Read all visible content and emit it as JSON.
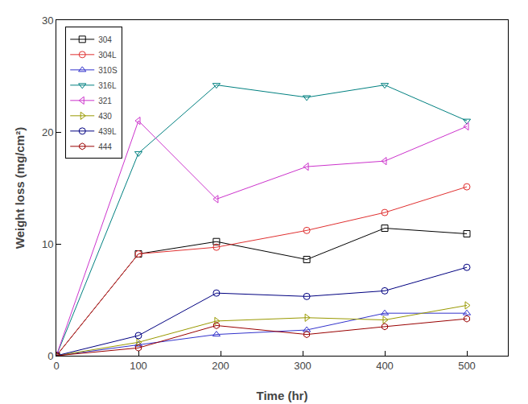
{
  "chart_data": {
    "type": "line",
    "x_label": "Time (hr)",
    "y_label": "Weight loss (mg/cm²)",
    "x": [
      0,
      100,
      195,
      305,
      400,
      500
    ],
    "series": [
      {
        "name": "304",
        "color": "#000000",
        "marker": "square",
        "values": [
          0,
          9.1,
          10.2,
          8.6,
          11.4,
          10.9
        ]
      },
      {
        "name": "304L",
        "color": "#e03030",
        "marker": "circle",
        "values": [
          0,
          9.1,
          9.7,
          11.2,
          12.8,
          15.1
        ]
      },
      {
        "name": "310S",
        "color": "#3333cc",
        "marker": "triangle-up",
        "values": [
          0,
          1.0,
          1.9,
          2.3,
          3.8,
          3.8
        ]
      },
      {
        "name": "316L",
        "color": "#008080",
        "marker": "triangle-down",
        "values": [
          0,
          18.1,
          24.2,
          23.1,
          24.2,
          21.0
        ]
      },
      {
        "name": "321",
        "color": "#cc33cc",
        "marker": "triangle-left",
        "values": [
          0,
          21.0,
          14.0,
          16.9,
          17.4,
          20.5
        ]
      },
      {
        "name": "430",
        "color": "#999900",
        "marker": "triangle-right",
        "values": [
          0,
          1.2,
          3.1,
          3.4,
          3.2,
          4.5
        ]
      },
      {
        "name": "439L",
        "color": "#000080",
        "marker": "circle",
        "values": [
          0,
          1.8,
          5.6,
          5.3,
          5.8,
          7.9
        ]
      },
      {
        "name": "444",
        "color": "#990000",
        "marker": "hexagon",
        "values": [
          0,
          0.7,
          2.7,
          1.9,
          2.6,
          3.3
        ]
      }
    ],
    "xlim": [
      0,
      550
    ],
    "xticks": [
      0,
      100,
      200,
      300,
      400,
      500
    ],
    "ylim": [
      0,
      30
    ],
    "yticks": [
      0,
      10,
      20,
      30
    ],
    "grid": false,
    "legend": "upper left"
  }
}
